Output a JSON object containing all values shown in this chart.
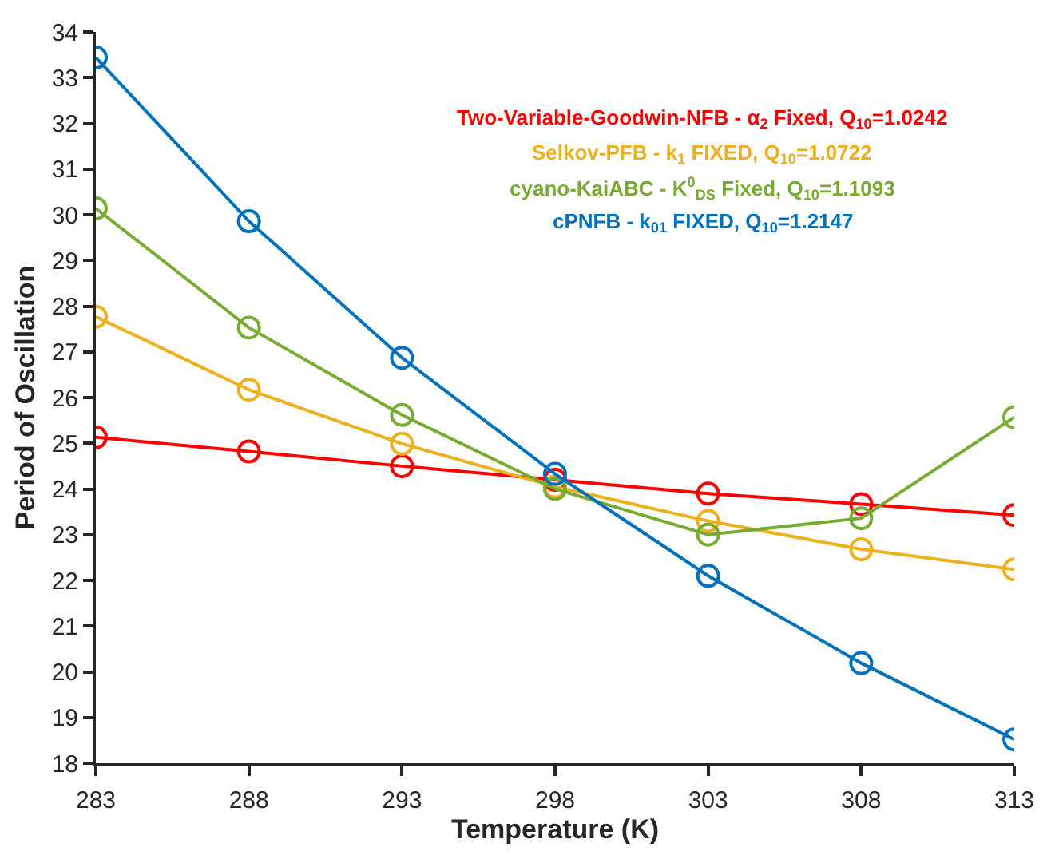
{
  "chart_data": {
    "type": "line",
    "xlabel": "Temperature (K)",
    "ylabel": "Period of Oscillation",
    "x": [
      283,
      288,
      293,
      298,
      303,
      308,
      313
    ],
    "series": [
      {
        "name": "Two-Variable-Goodwin-NFB - α$_{2}$ Fixed, Q$_{10}$=1.0242",
        "color": "#ff0000",
        "values": [
          25.13,
          24.82,
          24.5,
          24.2,
          23.9,
          23.67,
          23.43
        ]
      },
      {
        "name": "Selkov-PFB - k$_{1}$ FIXED, Q$_{10}$=1.0722",
        "color": "#edb120",
        "values": [
          27.77,
          26.17,
          24.99,
          24.05,
          23.3,
          22.68,
          22.24
        ]
      },
      {
        "name": "cyano-KaiABC - K$^{0}$$_{DS}$ Fixed, Q$_{10}$=1.1093",
        "color": "#77ac30",
        "values": [
          30.14,
          27.53,
          25.62,
          24.0,
          23.0,
          23.36,
          25.57
        ]
      },
      {
        "name": "cPNFB - k$_{01}$ FIXED, Q$_{10}$=1.2147",
        "color": "#0072bd",
        "values": [
          33.44,
          29.86,
          26.87,
          24.33,
          22.1,
          20.19,
          18.52
        ]
      }
    ],
    "xlim": [
      283,
      313
    ],
    "xticks": [
      283,
      288,
      293,
      298,
      303,
      308,
      313
    ],
    "ylim": [
      18,
      34
    ],
    "yticks": [
      18,
      19,
      20,
      21,
      22,
      23,
      24,
      25,
      26,
      27,
      28,
      29,
      30,
      31,
      32,
      33,
      34
    ],
    "marker": "circle",
    "line_style": "solid",
    "legend": "top right"
  }
}
